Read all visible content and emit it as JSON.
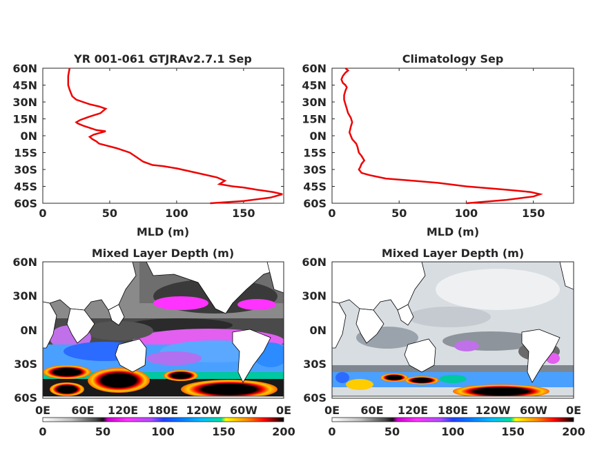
{
  "chart_data": [
    {
      "type": "line",
      "title": "YR 001-061 GTJRAv2.7.1 Sep",
      "xlabel": "MLD (m)",
      "ylabel": "",
      "xlim": [
        0,
        180
      ],
      "ylim": [
        -60,
        60
      ],
      "xticks": [
        0,
        50,
        100,
        150
      ],
      "xtick_labels": [
        "0",
        "50",
        "100",
        "150"
      ],
      "yticks": [
        60,
        45,
        30,
        15,
        0,
        -15,
        -30,
        -45,
        -60
      ],
      "ytick_labels": [
        "60N",
        "45N",
        "30N",
        "15N",
        "0N",
        "15S",
        "30S",
        "45S",
        "60S"
      ],
      "grid": false,
      "color": "#ee0000",
      "series": [
        {
          "x": [
            125,
            150,
            170,
            179,
            172,
            160,
            150,
            142,
            137,
            132,
            136,
            130,
            115,
            100,
            90,
            82,
            75,
            70,
            65,
            55,
            42,
            40,
            37,
            35,
            38,
            47,
            40,
            35,
            30,
            26,
            25,
            28,
            35,
            43,
            47,
            42,
            35,
            30,
            25,
            22,
            21,
            20,
            19,
            19,
            19,
            20
          ],
          "y": [
            -60,
            -58,
            -55,
            -52,
            -50,
            -48,
            -46,
            -45,
            -44,
            -43,
            -40,
            -37,
            -33,
            -29,
            -27,
            -26,
            -23,
            -19,
            -15,
            -11,
            -7,
            -5,
            -3,
            -1,
            1,
            4,
            5,
            7,
            9,
            11,
            12,
            14,
            17,
            20,
            24,
            26,
            28,
            30,
            32,
            35,
            38,
            41,
            45,
            49,
            53,
            60
          ]
        }
      ]
    },
    {
      "type": "line",
      "title": "Climatology Sep",
      "xlabel": "MLD (m)",
      "ylabel": "",
      "xlim": [
        0,
        180
      ],
      "ylim": [
        -60,
        60
      ],
      "xticks": [
        0,
        50,
        100,
        150
      ],
      "xtick_labels": [
        "0",
        "50",
        "100",
        "150"
      ],
      "yticks": [
        60,
        45,
        30,
        15,
        0,
        -15,
        -30,
        -45,
        -60
      ],
      "ytick_labels": [
        "60N",
        "45N",
        "30N",
        "15N",
        "0N",
        "15S",
        "30S",
        "45S",
        "60S"
      ],
      "grid": false,
      "color": "#ee0000",
      "series": [
        {
          "x": [
            100,
            130,
            150,
            155,
            148,
            130,
            100,
            80,
            60,
            40,
            28,
            22,
            20,
            21,
            22,
            24,
            22,
            20,
            19,
            18,
            15,
            14,
            13,
            14,
            15,
            14,
            12,
            11,
            10,
            9,
            9,
            10,
            11,
            10,
            8,
            7,
            8,
            10,
            12,
            10
          ],
          "y": [
            -60,
            -57,
            -54,
            -52,
            -50,
            -48,
            -45,
            -42,
            -40,
            -38,
            -35,
            -33,
            -30,
            -28,
            -25,
            -22,
            -18,
            -15,
            -10,
            -7,
            -3,
            0,
            3,
            8,
            12,
            16,
            20,
            24,
            28,
            32,
            36,
            40,
            43,
            45,
            47,
            50,
            53,
            56,
            58,
            60
          ]
        }
      ]
    },
    {
      "type": "heatmap",
      "title": "Mixed Layer Depth (m)",
      "xtick_labels": [
        "0E",
        "60E",
        "120E",
        "180E",
        "120W",
        "60W",
        "0E"
      ],
      "ytick_labels": [
        "60N",
        "30N",
        "0N",
        "30S",
        "60S"
      ],
      "colorbar": {
        "ticks": [
          0,
          50,
          100,
          150,
          200
        ],
        "tick_labels": [
          "0",
          "50",
          "100",
          "150",
          "200"
        ],
        "range": [
          0,
          200
        ],
        "colors": [
          "#ffffff",
          "#bdbdbd",
          "#5a5a5a",
          "#1c1c1c",
          "#ff00ff",
          "#3a3aff",
          "#00aaff",
          "#00d9a0",
          "#ffff00",
          "#ff6600",
          "#ff0000",
          "#000000"
        ]
      }
    },
    {
      "type": "heatmap",
      "title": "Mixed Layer Depth (m)",
      "xtick_labels": [
        "0E",
        "60E",
        "120E",
        "180E",
        "120W",
        "60W",
        "0E"
      ],
      "ytick_labels": [
        "60N",
        "30N",
        "0N",
        "30S",
        "60S"
      ],
      "colorbar": {
        "ticks": [
          0,
          50,
          100,
          150,
          200
        ],
        "tick_labels": [
          "0",
          "50",
          "100",
          "150",
          "200"
        ],
        "range": [
          0,
          200
        ],
        "colors": [
          "#ffffff",
          "#bdbdbd",
          "#5a5a5a",
          "#1c1c1c",
          "#ff00ff",
          "#3a3aff",
          "#00aaff",
          "#00d9a0",
          "#ffff00",
          "#ff6600",
          "#ff0000",
          "#000000"
        ]
      }
    }
  ]
}
